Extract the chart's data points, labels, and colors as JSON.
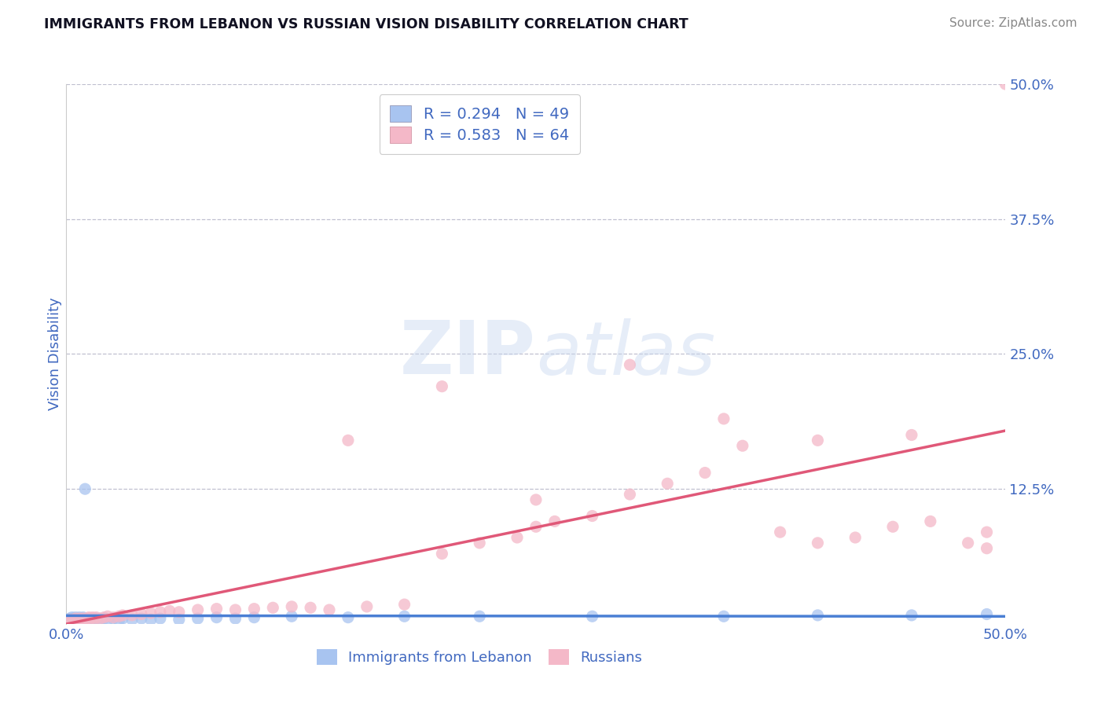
{
  "title": "IMMIGRANTS FROM LEBANON VS RUSSIAN VISION DISABILITY CORRELATION CHART",
  "source": "Source: ZipAtlas.com",
  "ylabel": "Vision Disability",
  "xlim": [
    0.0,
    0.5
  ],
  "ylim": [
    0.0,
    0.5
  ],
  "xtick_positions": [
    0.0,
    0.5
  ],
  "xtick_labels": [
    "0.0%",
    "50.0%"
  ],
  "ytick_positions": [
    0.0,
    0.125,
    0.25,
    0.375,
    0.5
  ],
  "ytick_labels": [
    "",
    "12.5%",
    "25.0%",
    "37.5%",
    "50.0%"
  ],
  "grid_yticks": [
    0.125,
    0.25,
    0.375,
    0.5
  ],
  "lebanon_color": "#a8c4f0",
  "russia_color": "#f4b8c8",
  "lebanon_line_color": "#4a7fd4",
  "russia_line_color": "#e05878",
  "lebanon_R": 0.294,
  "lebanon_N": 49,
  "russia_R": 0.583,
  "russia_N": 64,
  "legend_label_lebanon": "Immigrants from Lebanon",
  "legend_label_russia": "Russians",
  "watermark_text": "ZIPatlas",
  "title_color": "#111122",
  "tick_color": "#4169c0",
  "grid_color": "#c0c0d0",
  "background_color": "#ffffff",
  "lebanon_x": [
    0.001,
    0.002,
    0.002,
    0.003,
    0.003,
    0.004,
    0.004,
    0.005,
    0.005,
    0.006,
    0.006,
    0.007,
    0.007,
    0.008,
    0.008,
    0.009,
    0.009,
    0.01,
    0.011,
    0.012,
    0.013,
    0.014,
    0.015,
    0.016,
    0.018,
    0.02,
    0.022,
    0.025,
    0.028,
    0.03,
    0.035,
    0.04,
    0.045,
    0.05,
    0.06,
    0.07,
    0.08,
    0.09,
    0.1,
    0.12,
    0.15,
    0.18,
    0.22,
    0.28,
    0.35,
    0.4,
    0.45,
    0.49,
    0.01
  ],
  "lebanon_y": [
    0.004,
    0.005,
    0.003,
    0.006,
    0.004,
    0.005,
    0.003,
    0.006,
    0.004,
    0.005,
    0.003,
    0.006,
    0.004,
    0.005,
    0.003,
    0.006,
    0.004,
    0.005,
    0.004,
    0.005,
    0.004,
    0.005,
    0.004,
    0.005,
    0.004,
    0.005,
    0.004,
    0.005,
    0.003,
    0.005,
    0.004,
    0.005,
    0.004,
    0.005,
    0.004,
    0.005,
    0.006,
    0.005,
    0.006,
    0.007,
    0.006,
    0.007,
    0.007,
    0.007,
    0.007,
    0.008,
    0.008,
    0.009,
    0.125
  ],
  "russia_x": [
    0.001,
    0.002,
    0.003,
    0.004,
    0.005,
    0.006,
    0.007,
    0.008,
    0.009,
    0.01,
    0.011,
    0.012,
    0.013,
    0.014,
    0.015,
    0.016,
    0.018,
    0.02,
    0.022,
    0.025,
    0.028,
    0.03,
    0.035,
    0.04,
    0.045,
    0.05,
    0.055,
    0.06,
    0.07,
    0.08,
    0.09,
    0.1,
    0.11,
    0.12,
    0.13,
    0.14,
    0.16,
    0.18,
    0.2,
    0.22,
    0.24,
    0.25,
    0.26,
    0.28,
    0.3,
    0.32,
    0.34,
    0.36,
    0.38,
    0.4,
    0.42,
    0.44,
    0.46,
    0.48,
    0.49,
    0.5,
    0.15,
    0.2,
    0.25,
    0.3,
    0.35,
    0.4,
    0.45,
    0.49
  ],
  "russia_y": [
    0.003,
    0.004,
    0.003,
    0.004,
    0.005,
    0.004,
    0.005,
    0.004,
    0.005,
    0.004,
    0.005,
    0.006,
    0.005,
    0.006,
    0.005,
    0.006,
    0.005,
    0.006,
    0.007,
    0.006,
    0.007,
    0.008,
    0.008,
    0.009,
    0.01,
    0.011,
    0.012,
    0.011,
    0.013,
    0.014,
    0.013,
    0.014,
    0.015,
    0.016,
    0.015,
    0.013,
    0.016,
    0.018,
    0.065,
    0.075,
    0.08,
    0.09,
    0.095,
    0.1,
    0.12,
    0.13,
    0.14,
    0.165,
    0.085,
    0.075,
    0.08,
    0.09,
    0.095,
    0.075,
    0.07,
    0.5,
    0.17,
    0.22,
    0.115,
    0.24,
    0.19,
    0.17,
    0.175,
    0.085
  ]
}
